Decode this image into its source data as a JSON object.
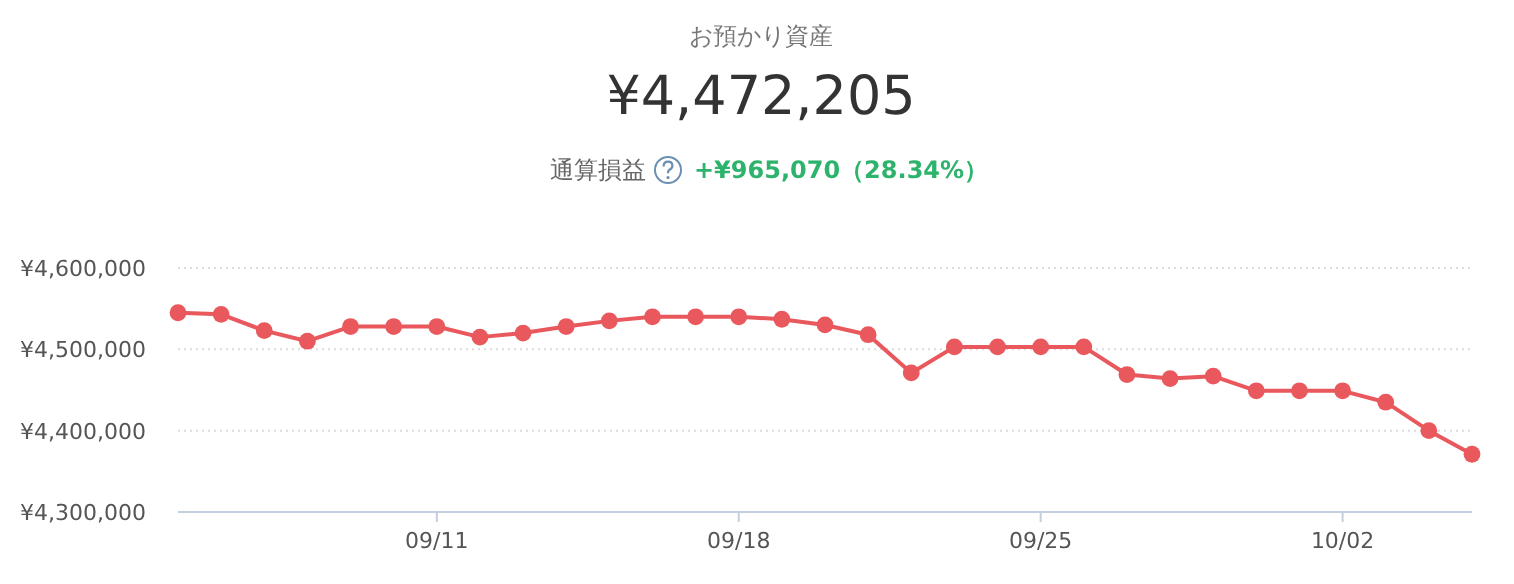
{
  "chart_data": {
    "type": "line",
    "title": "お預かり資産",
    "subtitle": "¥4,472,205",
    "annotations": [
      "通算損益",
      "+¥965,070（28.34%）"
    ],
    "categories": [
      null,
      null,
      null,
      null,
      null,
      null,
      "09/11",
      null,
      null,
      null,
      null,
      null,
      null,
      "09/18",
      null,
      null,
      null,
      null,
      null,
      null,
      "09/25",
      null,
      null,
      null,
      null,
      null,
      null,
      "10/02",
      null,
      null,
      null
    ],
    "series": [
      {
        "color": "#e8585c",
        "values": [
          4545000,
          4543000,
          4523000,
          4510000,
          4528000,
          4528000,
          4528000,
          4515000,
          4520000,
          4528000,
          4535000,
          4540000,
          4540000,
          4540000,
          4537000,
          4530000,
          4518000,
          4471000,
          4503000,
          4503000,
          4503000,
          4503000,
          4469000,
          4464000,
          4467000,
          4449000,
          4449000,
          4449000,
          4435000,
          4400000,
          4371000
        ]
      }
    ],
    "ylim": [
      4300000,
      4600000
    ],
    "yticks": [
      {
        "value": 4300000,
        "label": "¥4,300,000"
      },
      {
        "value": 4400000,
        "label": "¥4,400,000"
      },
      {
        "value": 4500000,
        "label": "¥4,500,000"
      },
      {
        "value": 4600000,
        "label": "¥4,600,000"
      }
    ],
    "grid": "y",
    "marker": "circle",
    "line_style": "solid"
  }
}
